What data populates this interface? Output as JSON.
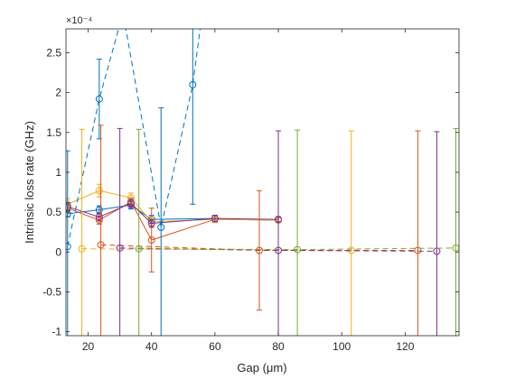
{
  "chart_data": {
    "type": "line",
    "title": "",
    "xlabel": "Gap (μm)",
    "ylabel": "Intrinsic loss rate (GHz)",
    "exponent_label": "×10⁻⁴",
    "xlim": [
      13,
      137
    ],
    "ylim": [
      -1.05,
      2.8
    ],
    "xticks": [
      20,
      40,
      60,
      80,
      100,
      120
    ],
    "yticks": [
      -1,
      -0.5,
      0,
      0.5,
      1,
      1.5,
      2,
      2.5
    ],
    "ytick_labels": [
      "-1",
      "-0.5",
      "0",
      "0.5",
      "1",
      "1.5",
      "2",
      "2.5"
    ],
    "grid": false,
    "box": true,
    "colors": [
      "#0072BD",
      "#D95319",
      "#EDB120",
      "#7E2F8E",
      "#77AC30",
      "#4DBEEE",
      "#A2142F"
    ],
    "series": [
      {
        "color": "#0072BD",
        "dash": "none",
        "x": [
          13.5,
          23.5,
          33.5,
          40,
          60,
          80
        ],
        "y": [
          0.48,
          0.53,
          0.59,
          0.41,
          0.42,
          0.4
        ],
        "err": [
          0.04,
          0.05,
          0.05,
          0.05,
          0.04,
          0.03
        ]
      },
      {
        "color": "#D95319",
        "dash": "none",
        "x": [
          13.5,
          23.5,
          33.5,
          40,
          60,
          80
        ],
        "y": [
          0.55,
          0.4,
          0.63,
          0.15,
          0.41,
          0.4
        ],
        "err": [
          0.05,
          0.05,
          0.05,
          0.4,
          0.04,
          0.03
        ]
      },
      {
        "color": "#EDB120",
        "dash": "none",
        "x": [
          13.5,
          23.5,
          33.5,
          40,
          60,
          80
        ],
        "y": [
          0.6,
          0.77,
          0.68,
          0.38,
          0.41,
          0.4
        ],
        "err": [
          0.07,
          0.08,
          0.06,
          0.06,
          0.04,
          0.03
        ]
      },
      {
        "color": "#7E2F8E",
        "dash": "none",
        "x": [
          13.5,
          23.5,
          33.5,
          40,
          60,
          80
        ],
        "y": [
          0.57,
          0.44,
          0.61,
          0.36,
          0.42,
          0.41
        ],
        "err": [
          0.05,
          0.05,
          0.05,
          0.05,
          0.04,
          0.03
        ]
      },
      {
        "color": "#0072BD",
        "dash": "6 4",
        "x": [
          13.5,
          23.5,
          43,
          53
        ],
        "y": [
          0.07,
          1.92,
          0.31,
          2.1
        ],
        "err": [
          1.2,
          0.5,
          1.5,
          1.5
        ],
        "extra": [
          [
            31,
            3.0
          ],
          [
            56,
            3.0
          ]
        ]
      },
      {
        "color": "#EDB120",
        "dash": "6 4",
        "x": [
          18,
          103
        ],
        "y": [
          0.04,
          0.02
        ],
        "err": [
          1.5,
          1.5
        ]
      },
      {
        "color": "#D95319",
        "dash": "6 4",
        "x": [
          24,
          74,
          124
        ],
        "y": [
          0.09,
          0.02,
          0.02
        ],
        "err": [
          1.5,
          0.75,
          1.5
        ]
      },
      {
        "color": "#7E2F8E",
        "dash": "6 4",
        "x": [
          30,
          80,
          130
        ],
        "y": [
          0.05,
          0.02,
          0.01
        ],
        "err": [
          1.5,
          1.5,
          1.5
        ]
      },
      {
        "color": "#77AC30",
        "dash": "6 4",
        "x": [
          36,
          86,
          136
        ],
        "y": [
          0.04,
          0.03,
          0.05
        ],
        "err": [
          1.5,
          1.5,
          1.5
        ]
      }
    ]
  }
}
